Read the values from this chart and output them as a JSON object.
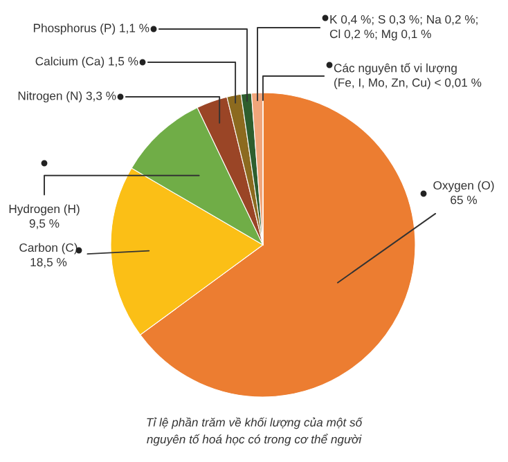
{
  "chart_data": {
    "type": "pie",
    "categories": [
      "Oxygen (O)",
      "Carbon (C)",
      "Hydrogen (H)",
      "Nitrogen (N)",
      "Calcium (Ca)",
      "Phosphorus (P)",
      "K 0,4 %; S 0,3 %; Na 0,2 %;\nCl 0,2 %; Mg 0,1 %",
      "Các nguyên tố vi lượng\n(Fe, I, Mo, Zn, Cu)"
    ],
    "values": [
      65,
      18.5,
      9.5,
      3.3,
      1.5,
      1.1,
      1.2,
      0.01
    ],
    "value_labels": [
      "65 %",
      "18,5 %",
      "9,5 %",
      "3,3 %",
      "1,5 %",
      "1,1 %",
      null,
      "< 0,01 %"
    ],
    "colors": [
      "#ec7d31",
      "#fbbf16",
      "#70ad47",
      "#9a4526",
      "#8c6a1f",
      "#2e5e2e",
      "#f0a57a",
      "#fdc52b"
    ],
    "annotations": [
      "Tỉ lệ phần trăm về khối lượng của một số\nnguyên tố hoá học có trong cơ thể người"
    ]
  }
}
